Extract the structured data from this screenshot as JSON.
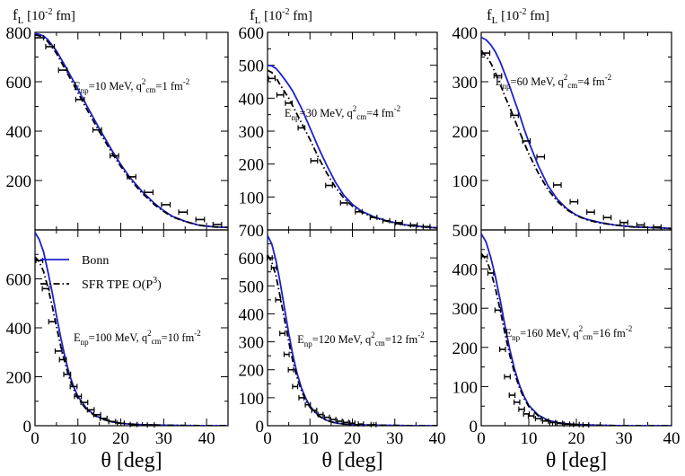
{
  "chart_data": [
    {
      "type": "line",
      "panel": "top-left",
      "ylabel_prefix": "f",
      "ylabel_sub": "L",
      "ylabel_unit": "[10",
      "ylabel_unit_exp": "-2",
      "ylabel_unit_tail": " fm]",
      "xlim": [
        0,
        45
      ],
      "ylim": [
        0,
        800
      ],
      "xticks": [],
      "yticks": [
        200,
        400,
        600,
        800
      ],
      "annotation": {
        "e": "E",
        "e_sub": "np",
        "e_val": "=10 MeV, q",
        "q_sup": "2",
        "q_sub": "cm",
        "q_val": "=1 fm",
        "exp": "-2"
      },
      "series": [
        {
          "name": "Bonn",
          "x": [
            0,
            1,
            2,
            3,
            5,
            7,
            10,
            12,
            15,
            18,
            20,
            22,
            25,
            28,
            30,
            32,
            35,
            38,
            40,
            42,
            45
          ],
          "y": [
            795,
            792,
            785,
            770,
            725,
            665,
            570,
            505,
            410,
            320,
            265,
            215,
            155,
            105,
            78,
            55,
            35,
            20,
            15,
            12,
            10
          ]
        },
        {
          "name": "SFR TPE O(P3)",
          "x": [
            0,
            1,
            2,
            3,
            5,
            7,
            10,
            12,
            15,
            18,
            20,
            22,
            25,
            28,
            30,
            32,
            35,
            38,
            40,
            42,
            45
          ],
          "y": [
            790,
            786,
            778,
            762,
            715,
            652,
            556,
            491,
            398,
            310,
            257,
            208,
            148,
            100,
            75,
            53,
            34,
            20,
            15,
            12,
            10
          ]
        }
      ],
      "points": {
        "x": [
          1,
          3.5,
          6.5,
          10.5,
          14.5,
          18.5,
          22.5,
          26.5,
          30.5,
          34.5,
          38.5,
          42.5
        ],
        "y": [
          778,
          742,
          647,
          528,
          405,
          300,
          215,
          152,
          102,
          72,
          42,
          22
        ],
        "xerr": [
          1,
          1,
          1,
          1,
          1,
          1,
          1,
          1,
          1,
          1,
          1,
          1
        ]
      }
    },
    {
      "type": "line",
      "panel": "top-middle",
      "ylabel_prefix": "f",
      "ylabel_sub": "L",
      "ylabel_unit": "[10",
      "ylabel_unit_exp": "-2",
      "ylabel_unit_tail": " fm]",
      "xlim": [
        0,
        40
      ],
      "ylim": [
        0,
        600
      ],
      "xticks": [],
      "yticks": [
        100,
        200,
        300,
        400,
        500,
        600
      ],
      "annotation": {
        "e": "E",
        "e_sub": "np",
        "e_val": "=30 MeV, q",
        "q_sup": "2",
        "q_sub": "cm",
        "q_val": "=4 fm",
        "exp": "-2"
      },
      "series": [
        {
          "name": "Bonn",
          "x": [
            0,
            1,
            2,
            3,
            4,
            5,
            6,
            8,
            10,
            12,
            14,
            16,
            18,
            20,
            22,
            25,
            28,
            30,
            32,
            35,
            38,
            40
          ],
          "y": [
            500,
            498,
            490,
            475,
            458,
            440,
            420,
            370,
            310,
            250,
            195,
            145,
            105,
            78,
            58,
            40,
            28,
            22,
            16,
            12,
            8,
            6
          ]
        },
        {
          "name": "SFR TPE O(P3)",
          "x": [
            0,
            1,
            2,
            3,
            4,
            5,
            6,
            8,
            10,
            12,
            14,
            16,
            18,
            20,
            22,
            25,
            28,
            30,
            32,
            35,
            38,
            40
          ],
          "y": [
            485,
            478,
            462,
            440,
            420,
            400,
            375,
            325,
            275,
            220,
            172,
            130,
            96,
            72,
            55,
            38,
            27,
            21,
            15,
            11,
            8,
            6
          ]
        }
      ],
      "points": {
        "x": [
          1,
          3,
          5,
          8,
          11,
          14.5,
          18,
          21.5,
          25,
          28,
          31,
          34.5,
          37.5
        ],
        "y": [
          460,
          410,
          385,
          310,
          210,
          135,
          82,
          55,
          38,
          28,
          22,
          15,
          10
        ],
        "xerr": [
          0.8,
          0.8,
          0.8,
          0.8,
          0.8,
          0.8,
          0.8,
          0.8,
          0.8,
          0.8,
          0.8,
          0.8,
          0.8
        ]
      }
    },
    {
      "type": "line",
      "panel": "top-right",
      "ylabel_prefix": "f",
      "ylabel_sub": "L",
      "ylabel_unit": "[10",
      "ylabel_unit_exp": "-2",
      "ylabel_unit_tail": " fm]",
      "xlim": [
        0,
        40
      ],
      "ylim": [
        0,
        400
      ],
      "xticks": [],
      "yticks": [
        100,
        200,
        300,
        400
      ],
      "annotation": {
        "e": "E",
        "e_sub": "np",
        "e_val": "=60 MeV, q",
        "q_sup": "2",
        "q_sub": "cm",
        "q_val": "=4 fm",
        "exp": "-2"
      },
      "series": [
        {
          "name": "Bonn",
          "x": [
            0,
            1,
            2,
            3,
            4,
            5,
            6,
            7,
            8,
            9,
            10,
            12,
            14,
            16,
            18,
            20,
            22,
            25,
            28,
            30,
            32,
            35,
            38,
            40
          ],
          "y": [
            390,
            385,
            375,
            360,
            340,
            315,
            290,
            262,
            235,
            205,
            178,
            130,
            90,
            62,
            43,
            30,
            22,
            15,
            10,
            8,
            6,
            5,
            4,
            3
          ]
        },
        {
          "name": "SFR TPE O(P3)",
          "x": [
            0,
            1,
            2,
            3,
            4,
            5,
            6,
            7,
            8,
            9,
            10,
            12,
            14,
            16,
            18,
            20,
            22,
            25,
            28,
            30,
            32,
            35,
            38,
            40
          ],
          "y": [
            362,
            352,
            338,
            318,
            295,
            270,
            248,
            224,
            200,
            177,
            154,
            115,
            82,
            58,
            41,
            29,
            21,
            14,
            10,
            8,
            6,
            5,
            4,
            3
          ]
        }
      ],
      "points": {
        "x": [
          1,
          3.5,
          7,
          9.5,
          12.5,
          16,
          19.5,
          23,
          26.5,
          30,
          33.5,
          37
        ],
        "y": [
          358,
          312,
          232,
          180,
          148,
          91,
          57,
          36,
          25,
          15,
          10,
          6
        ],
        "xerr": [
          0.8,
          0.8,
          0.8,
          0.8,
          0.8,
          0.8,
          0.8,
          0.8,
          0.8,
          0.8,
          0.8,
          0.8
        ]
      }
    },
    {
      "type": "line",
      "panel": "bottom-left",
      "xlim": [
        0,
        45
      ],
      "ylim": [
        0,
        800
      ],
      "xticks": [
        0,
        10,
        20,
        30,
        40
      ],
      "yticks": [
        0,
        200,
        400,
        600
      ],
      "xlabel_theta": "θ",
      "xlabel_rest": " [deg]",
      "annotation": {
        "e": "E",
        "e_sub": "np",
        "e_val": "=100 MeV, q",
        "q_sup": "2",
        "q_sub": "cm",
        "q_val": "=10 fm",
        "exp": "-2"
      },
      "legend": {
        "bonn": "Bonn",
        "sfr": "SFR TPE O(P",
        "sfr_sup": "3",
        "sfr_tail": ")"
      },
      "series": [
        {
          "name": "Bonn",
          "x": [
            0,
            1,
            2,
            3,
            4,
            5,
            6,
            7,
            8,
            9,
            10,
            12,
            14,
            16,
            18,
            20,
            22,
            25,
            28,
            30,
            35,
            40,
            45
          ],
          "y": [
            790,
            760,
            710,
            630,
            545,
            450,
            360,
            280,
            210,
            160,
            120,
            70,
            42,
            26,
            16,
            10,
            7,
            4,
            3,
            2,
            1,
            0,
            0
          ]
        },
        {
          "name": "SFR TPE O(P3)",
          "x": [
            0,
            1,
            2,
            3,
            4,
            5,
            6,
            7,
            8,
            9,
            10,
            12,
            14,
            16,
            18,
            20,
            22,
            25,
            28,
            30,
            35,
            40,
            45
          ],
          "y": [
            690,
            670,
            630,
            565,
            490,
            405,
            325,
            255,
            195,
            150,
            112,
            66,
            40,
            25,
            15,
            10,
            7,
            4,
            3,
            2,
            1,
            0,
            0
          ]
        }
      ],
      "points": {
        "x": [
          1,
          2.5,
          4,
          5.5,
          6.5,
          7.5,
          9,
          10,
          11.5,
          13,
          14.5,
          16,
          18,
          20,
          23,
          27
        ],
        "y": [
          675,
          560,
          425,
          305,
          270,
          210,
          160,
          120,
          95,
          65,
          45,
          30,
          17,
          10,
          5,
          3
        ],
        "xerr": [
          0.8,
          0.8,
          0.8,
          0.8,
          0.8,
          0.8,
          0.8,
          0.8,
          0.8,
          0.8,
          0.8,
          0.8,
          0.8,
          0.8,
          0.8,
          0.8
        ]
      }
    },
    {
      "type": "line",
      "panel": "bottom-middle",
      "xlim": [
        0,
        40
      ],
      "ylim": [
        0,
        700
      ],
      "xticks": [
        0,
        10,
        20,
        30,
        40
      ],
      "yticks": [
        0,
        100,
        200,
        300,
        400,
        500,
        600,
        700
      ],
      "xlabel_theta": "θ",
      "xlabel_rest": " [deg]",
      "annotation": {
        "e": "E",
        "e_sub": "np",
        "e_val": "=120 MeV, q",
        "q_sup": "2",
        "q_sub": "cm",
        "q_val": "=12 fm",
        "exp": "-2"
      },
      "series": [
        {
          "name": "Bonn",
          "x": [
            0,
            1,
            2,
            3,
            4,
            5,
            6,
            7,
            8,
            9,
            10,
            12,
            14,
            16,
            18,
            20,
            25,
            30,
            35,
            40
          ],
          "y": [
            680,
            650,
            590,
            510,
            420,
            330,
            250,
            185,
            135,
            98,
            70,
            36,
            19,
            10,
            6,
            4,
            2,
            1,
            0,
            0
          ]
        },
        {
          "name": "SFR TPE O(P3)",
          "x": [
            0,
            1,
            2,
            3,
            4,
            5,
            6,
            7,
            8,
            9,
            10,
            12,
            14,
            16,
            18,
            20,
            25,
            30,
            35,
            40
          ],
          "y": [
            610,
            585,
            535,
            460,
            380,
            300,
            228,
            170,
            125,
            92,
            66,
            35,
            18,
            10,
            6,
            4,
            2,
            1,
            0,
            0
          ]
        }
      ],
      "points": {
        "x": [
          0.5,
          1.5,
          2.5,
          3.5,
          4.5,
          5.5,
          6.5,
          8,
          9.5,
          11,
          12.5,
          14,
          15.5,
          17,
          18.5,
          20,
          22,
          25
        ],
        "y": [
          600,
          565,
          450,
          330,
          255,
          200,
          140,
          100,
          75,
          55,
          40,
          30,
          22,
          16,
          12,
          9,
          6,
          4
        ],
        "xerr": [
          0.6,
          0.6,
          0.6,
          0.6,
          0.6,
          0.6,
          0.6,
          0.6,
          0.6,
          0.6,
          0.6,
          0.6,
          0.6,
          0.6,
          0.6,
          0.6,
          0.6,
          0.6
        ]
      }
    },
    {
      "type": "line",
      "panel": "bottom-right",
      "xlim": [
        0,
        40
      ],
      "ylim": [
        0,
        500
      ],
      "xticks": [
        0,
        10,
        20,
        30,
        40
      ],
      "yticks": [
        0,
        100,
        200,
        300,
        400,
        500
      ],
      "xlabel_theta": "θ",
      "xlabel_rest": " [deg]",
      "annotation": {
        "e": "E",
        "e_sub": "np",
        "e_val": "=160 MeV, q",
        "q_sup": "2",
        "q_sub": "cm",
        "q_val": "=16 fm",
        "exp": "-2"
      },
      "series": [
        {
          "name": "Bonn",
          "x": [
            0,
            1,
            2,
            3,
            4,
            5,
            6,
            7,
            8,
            9,
            10,
            12,
            14,
            16,
            18,
            20,
            25,
            30,
            35,
            40
          ],
          "y": [
            490,
            470,
            430,
            380,
            320,
            255,
            195,
            145,
            105,
            75,
            52,
            27,
            14,
            8,
            5,
            3,
            1,
            0,
            0,
            0
          ]
        },
        {
          "name": "SFR TPE O(P3)",
          "x": [
            0,
            1,
            2,
            3,
            4,
            5,
            6,
            7,
            8,
            9,
            10,
            12,
            14,
            16,
            18,
            20,
            25,
            30,
            35,
            40
          ],
          "y": [
            440,
            425,
            395,
            350,
            295,
            235,
            180,
            135,
            98,
            70,
            49,
            25,
            13,
            7,
            4,
            3,
            1,
            0,
            0,
            0
          ]
        }
      ],
      "points": {
        "x": [
          0.7,
          2,
          3.5,
          4.5,
          5.5,
          6.5,
          7.5,
          8.5,
          9.5,
          10.5,
          12,
          13.5,
          15,
          16.5,
          18,
          20,
          22
        ],
        "y": [
          432,
          390,
          295,
          195,
          125,
          78,
          60,
          42,
          30,
          25,
          18,
          12,
          8,
          6,
          4,
          3,
          2
        ],
        "xerr": [
          0.6,
          0.6,
          0.6,
          0.6,
          0.6,
          0.6,
          0.6,
          0.6,
          0.6,
          0.6,
          0.6,
          0.6,
          0.6,
          0.6,
          0.6,
          0.6,
          0.6
        ]
      }
    }
  ],
  "colors": {
    "bonn": "#1f1fd0",
    "sfr": "#000000",
    "axis": "#000000"
  }
}
